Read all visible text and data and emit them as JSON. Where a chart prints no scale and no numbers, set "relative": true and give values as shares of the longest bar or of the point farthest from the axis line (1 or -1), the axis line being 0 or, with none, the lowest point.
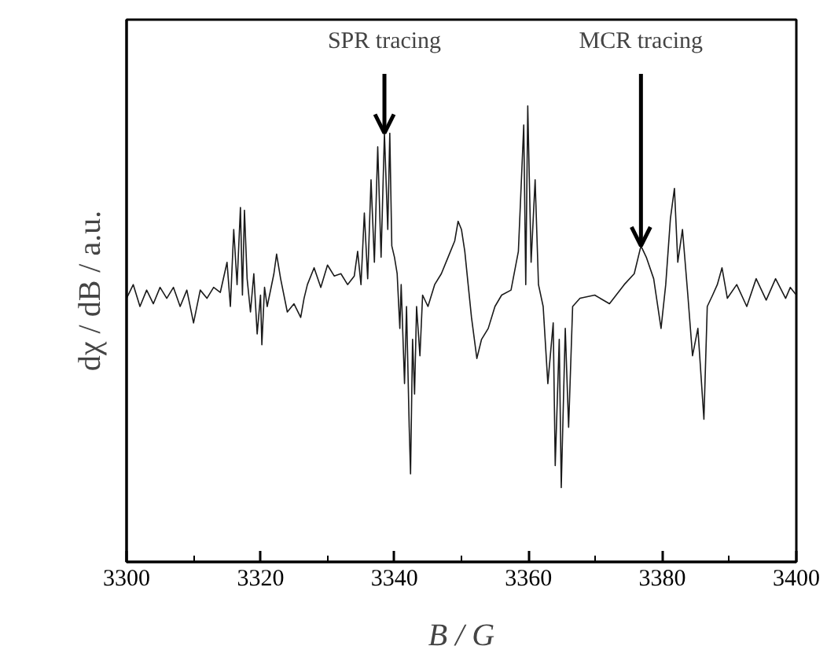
{
  "chart_data": {
    "type": "line",
    "relative": true,
    "xlabel": "B / G",
    "ylabel": "dχ / dB / a.u.",
    "xlim": [
      3300,
      3400
    ],
    "xticks": [
      3300,
      3320,
      3340,
      3360,
      3380,
      3400
    ],
    "tick_labels": "x",
    "annotations": [
      {
        "text": "SPR tracing",
        "x": 3338.5,
        "y": 0.94
      },
      {
        "text": "MCR tracing",
        "x": 3376.8,
        "y": 0.693
      }
    ],
    "series": [
      {
        "color": "#1a1a1a",
        "x": [
          3300,
          3301,
          3302,
          3303,
          3304,
          3305,
          3306,
          3307,
          3308,
          3309,
          3310,
          3311,
          3312,
          3313,
          3314,
          3315,
          3315.5,
          3316,
          3316.5,
          3317,
          3317.3,
          3317.6,
          3318,
          3318.5,
          3319,
          3319.5,
          3320,
          3320.2,
          3320.6,
          3321,
          3322,
          3322.4,
          3323,
          3324,
          3325,
          3326,
          3326.5,
          3327,
          3328,
          3329,
          3330,
          3331,
          3332,
          3333,
          3334,
          3334.5,
          3335,
          3335.5,
          3336,
          3336.5,
          3337,
          3337.5,
          3338,
          3338.5,
          3339,
          3339.3,
          3339.6,
          3340,
          3340.4,
          3340.8,
          3341,
          3341.5,
          3341.8,
          3342.2,
          3342.4,
          3342.7,
          3343,
          3343.3,
          3343.8,
          3344.2,
          3345,
          3346,
          3347,
          3348,
          3349,
          3349.5,
          3350,
          3350.5,
          3351,
          3351.5,
          3352.3,
          3353,
          3354,
          3355,
          3356,
          3357.4,
          3358.5,
          3359.3,
          3359.6,
          3359.9,
          3360.4,
          3361,
          3361.5,
          3362.2,
          3362.9,
          3363.7,
          3364,
          3364.6,
          3364.9,
          3365.5,
          3366,
          3366.6,
          3367.7,
          3369.9,
          3372.1,
          3374.3,
          3375.8,
          3376.8,
          3377.6,
          3378.7,
          3379.8,
          3380.5,
          3381.2,
          3381.8,
          3382.3,
          3383,
          3383.8,
          3384.5,
          3385.3,
          3386.2,
          3386.7,
          3387.5,
          3388.2,
          3388.9,
          3389.7,
          3391.1,
          3392.6,
          3394,
          3395.5,
          3396.9,
          3398.4,
          3399.1,
          3400
        ],
        "values": [
          0.578,
          0.608,
          0.56,
          0.596,
          0.566,
          0.602,
          0.578,
          0.602,
          0.56,
          0.596,
          0.524,
          0.596,
          0.578,
          0.602,
          0.591,
          0.657,
          0.56,
          0.729,
          0.608,
          0.777,
          0.585,
          0.771,
          0.621,
          0.548,
          0.632,
          0.5,
          0.585,
          0.476,
          0.602,
          0.56,
          0.632,
          0.675,
          0.621,
          0.548,
          0.566,
          0.536,
          0.578,
          0.608,
          0.645,
          0.602,
          0.651,
          0.627,
          0.632,
          0.608,
          0.627,
          0.681,
          0.608,
          0.765,
          0.621,
          0.838,
          0.657,
          0.91,
          0.668,
          0.94,
          0.729,
          0.94,
          0.693,
          0.668,
          0.632,
          0.512,
          0.608,
          0.391,
          0.56,
          0.295,
          0.193,
          0.488,
          0.368,
          0.56,
          0.452,
          0.585,
          0.56,
          0.608,
          0.632,
          0.668,
          0.704,
          0.747,
          0.729,
          0.681,
          0.608,
          0.536,
          0.446,
          0.488,
          0.512,
          0.56,
          0.585,
          0.596,
          0.681,
          0.958,
          0.608,
          1.0,
          0.657,
          0.838,
          0.608,
          0.56,
          0.391,
          0.524,
          0.211,
          0.488,
          0.163,
          0.512,
          0.295,
          0.56,
          0.578,
          0.585,
          0.566,
          0.608,
          0.632,
          0.693,
          0.668,
          0.621,
          0.512,
          0.608,
          0.753,
          0.819,
          0.657,
          0.729,
          0.585,
          0.452,
          0.512,
          0.313,
          0.56,
          0.585,
          0.608,
          0.645,
          0.578,
          0.608,
          0.56,
          0.621,
          0.574,
          0.621,
          0.578,
          0.602,
          0.585
        ]
      }
    ]
  }
}
